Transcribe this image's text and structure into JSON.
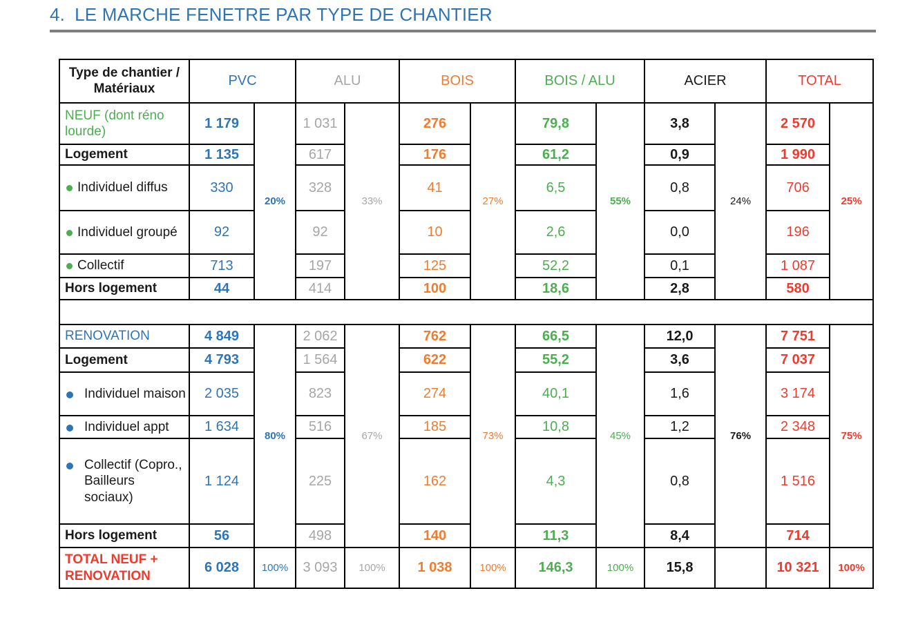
{
  "title": {
    "number": "4.",
    "text": "LE MARCHE FENETRE PAR TYPE DE CHANTIER"
  },
  "colors": {
    "blue": "#2E75B6",
    "gray": "#A6A6A6",
    "orange": "#ED7D31",
    "green": "#4DAE51",
    "black": "#1A1A1A",
    "red": "#EF3B2E",
    "underline_gray": "#7F7F7F"
  },
  "table": {
    "corner_header": "Type de chantier / Matériaux",
    "materials": [
      {
        "key": "pvc",
        "label": "PVC",
        "color": "#2E75B6"
      },
      {
        "key": "alu",
        "label": "ALU",
        "color": "#A6A6A6"
      },
      {
        "key": "bois",
        "label": "BOIS",
        "color": "#ED7D31"
      },
      {
        "key": "bois_alu",
        "label": "BOIS / ALU",
        "color": "#4DAE51"
      },
      {
        "key": "acier",
        "label": "ACIER",
        "color": "#1A1A1A"
      },
      {
        "key": "total",
        "label": "TOTAL",
        "color": "#EF3B2E"
      }
    ],
    "sections": [
      {
        "name": "neuf",
        "bullet_color": "#4DAE51",
        "percents": [
          "20%",
          "33%",
          "27%",
          "55%",
          "24%",
          "25%"
        ],
        "percents_bold": [
          "pvc",
          "bois_alu",
          "total"
        ],
        "rows": [
          {
            "label": "NEUF (dont réno lourde)",
            "kind": "title",
            "label_color": "#4DAE51",
            "bullet": false,
            "values": [
              "1 179",
              "1 031",
              "276",
              "79,8",
              "3,8",
              "2 570"
            ]
          },
          {
            "label": "Logement",
            "kind": "category",
            "label_color": "#1A1A1A",
            "bullet": false,
            "values": [
              "1 135",
              "617",
              "176",
              "61,2",
              "0,9",
              "1 990"
            ]
          },
          {
            "label": "Individuel diffus",
            "kind": "item",
            "label_color": "#1A1A1A",
            "bullet": true,
            "values": [
              "330",
              "328",
              "41",
              "6,5",
              "0,8",
              "706"
            ]
          },
          {
            "label": "Individuel groupé",
            "kind": "item",
            "label_color": "#1A1A1A",
            "bullet": true,
            "values": [
              "92",
              "92",
              "10",
              "2,6",
              "0,0",
              "196"
            ]
          },
          {
            "label": "Collectif",
            "kind": "item",
            "label_color": "#1A1A1A",
            "bullet": true,
            "values": [
              "713",
              "197",
              "125",
              "52,2",
              "0,1",
              "1 087"
            ]
          },
          {
            "label": "Hors logement",
            "kind": "category",
            "label_color": "#1A1A1A",
            "bullet": false,
            "values": [
              "44",
              "414",
              "100",
              "18,6",
              "2,8",
              "580"
            ]
          }
        ]
      },
      {
        "name": "renovation",
        "bullet_color": "#2E75B6",
        "percents": [
          "80%",
          "67%",
          "73%",
          "45%",
          "76%",
          "75%"
        ],
        "percents_bold": [
          "pvc",
          "acier",
          "total"
        ],
        "rows": [
          {
            "label": "RENOVATION",
            "kind": "title",
            "label_color": "#2E75B6",
            "bullet": false,
            "values": [
              "4 849",
              "2 062",
              "762",
              "66,5",
              "12,0",
              "7 751"
            ]
          },
          {
            "label": "Logement",
            "kind": "category",
            "label_color": "#1A1A1A",
            "bullet": false,
            "values": [
              "4 793",
              "1 564",
              "622",
              "55,2",
              "3,6",
              "7 037"
            ]
          },
          {
            "label": "Individuel maison",
            "kind": "item",
            "label_color": "#1A1A1A",
            "bullet": true,
            "values": [
              "2 035",
              "823",
              "274",
              "40,1",
              "1,6",
              "3 174"
            ]
          },
          {
            "label": "Individuel appt",
            "kind": "item",
            "label_color": "#1A1A1A",
            "bullet": true,
            "values": [
              "1 634",
              "516",
              "185",
              "10,8",
              "1,2",
              "2 348"
            ]
          },
          {
            "label": "Collectif (Copro., Bailleurs sociaux)",
            "kind": "item",
            "label_color": "#1A1A1A",
            "bullet": true,
            "values": [
              "1 124",
              "225",
              "162",
              "4,3",
              "0,8",
              "1 516"
            ]
          },
          {
            "label": "Hors logement",
            "kind": "category",
            "label_color": "#1A1A1A",
            "bullet": false,
            "values": [
              "56",
              "498",
              "140",
              "11,3",
              "8,4",
              "714"
            ]
          }
        ]
      }
    ],
    "total_row": {
      "label": "TOTAL NEUF + RENOVATION",
      "label_color": "#EF3B2E",
      "values": [
        "6 028",
        "3 093",
        "1 038",
        "146,3",
        "15,8",
        "10 321"
      ],
      "percents": [
        "100%",
        "100%",
        "100%",
        "100%",
        "",
        "100%"
      ],
      "percents_bold": [
        "total"
      ]
    }
  }
}
